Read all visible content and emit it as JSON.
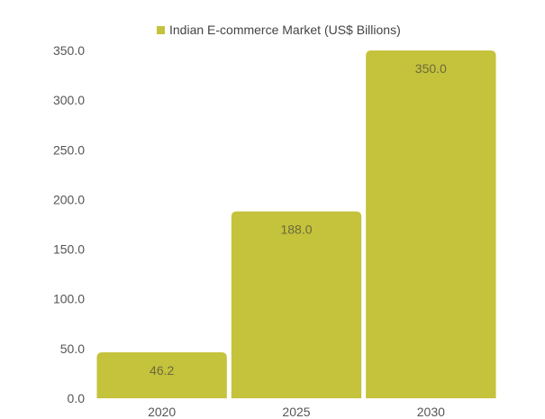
{
  "chart_data": {
    "type": "bar",
    "title": "",
    "xlabel": "",
    "ylabel": "",
    "categories": [
      "2020",
      "2025",
      "2030"
    ],
    "series": [
      {
        "name": "Indian E-commerce Market (US$ Billions)",
        "values": [
          46.2,
          188.0,
          350.0
        ],
        "data_labels": [
          "46.2",
          "188.0",
          "350.0"
        ],
        "color": "#c5c23c"
      }
    ],
    "ylim": [
      0,
      350
    ],
    "y_ticks": [
      0,
      50,
      100,
      150,
      200,
      250,
      300,
      350
    ],
    "y_tick_labels": [
      "0.0",
      "50.0",
      "100.0",
      "150.0",
      "200.0",
      "250.0",
      "300.0",
      "350.0"
    ],
    "grid": false,
    "legend_position": "top"
  },
  "colors": {
    "bar": "#c5c23c",
    "tick_text": "#555555",
    "label_text": "#6b6b3a",
    "legend_text": "#444444"
  }
}
